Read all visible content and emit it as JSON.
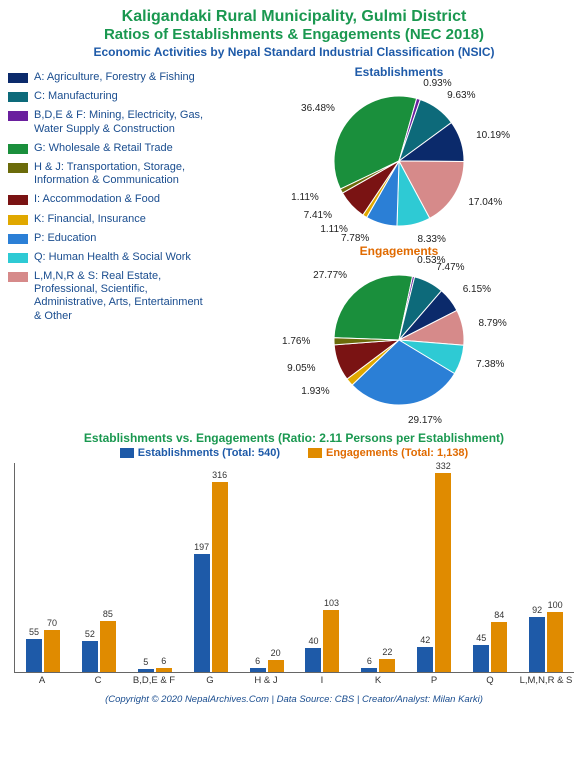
{
  "titles": {
    "line1": "Kaligandaki Rural Municipality, Gulmi District",
    "line2": "Ratios of Establishments & Engagements (NEC 2018)",
    "subtitle": "Economic Activities by Nepal Standard Industrial Classification (NSIC)"
  },
  "colors": {
    "title_green": "#1a9850",
    "subtitle_blue": "#1e5aa8",
    "bar_est": "#1e5aa8",
    "bar_eng": "#e08b00",
    "axis": "#666666",
    "bg": "#ffffff"
  },
  "categories": [
    {
      "code": "A",
      "label": "A: Agriculture, Forestry & Fishing",
      "color": "#0b2a6b"
    },
    {
      "code": "C",
      "label": "C: Manufacturing",
      "color": "#0d6a7a"
    },
    {
      "code": "B,D,E & F",
      "label": "B,D,E & F: Mining, Electricity, Gas, Water Supply & Construction",
      "color": "#6a1f9e"
    },
    {
      "code": "G",
      "label": "G: Wholesale & Retail Trade",
      "color": "#1a8f3c"
    },
    {
      "code": "H & J",
      "label": "H & J: Transportation, Storage, Information & Communication",
      "color": "#6b6b0a"
    },
    {
      "code": "I",
      "label": "I: Accommodation & Food",
      "color": "#7a1313"
    },
    {
      "code": "K",
      "label": "K: Financial, Insurance",
      "color": "#e0a800"
    },
    {
      "code": "P",
      "label": "P: Education",
      "color": "#2b7fd6"
    },
    {
      "code": "Q",
      "label": "Q: Human Health & Social Work",
      "color": "#2ecad4"
    },
    {
      "code": "L,M,N,R & S",
      "label": "L,M,N,R & S: Real Estate, Professional, Scientific, Administrative, Arts, Entertainment & Other",
      "color": "#d68a8a"
    }
  ],
  "pie_establishments": {
    "title": "Establishments",
    "title_color": "#1e5aa8",
    "radius": 65,
    "slices": [
      {
        "code": "G",
        "value": 36.48,
        "label": "36.48%"
      },
      {
        "code": "B,D,E & F",
        "value": 0.93,
        "label": "0.93%"
      },
      {
        "code": "C",
        "value": 9.63,
        "label": "9.63%"
      },
      {
        "code": "A",
        "value": 10.19,
        "label": "10.19%"
      },
      {
        "code": "L,M,N,R & S",
        "value": 17.04,
        "label": "17.04%"
      },
      {
        "code": "Q",
        "value": 8.33,
        "label": "8.33%"
      },
      {
        "code": "P",
        "value": 7.78,
        "label": "7.78%"
      },
      {
        "code": "K",
        "value": 1.11,
        "label": "1.11%"
      },
      {
        "code": "I",
        "value": 7.41,
        "label": "7.41%"
      },
      {
        "code": "H & J",
        "value": 1.11,
        "label": "1.11%"
      }
    ]
  },
  "pie_engagements": {
    "title": "Engagements",
    "title_color": "#e06a00",
    "radius": 65,
    "slices": [
      {
        "code": "G",
        "value": 27.77,
        "label": "27.77%"
      },
      {
        "code": "B,D,E & F",
        "value": 0.53,
        "label": "0.53%"
      },
      {
        "code": "C",
        "value": 7.47,
        "label": "7.47%"
      },
      {
        "code": "A",
        "value": 6.15,
        "label": "6.15%"
      },
      {
        "code": "L,M,N,R & S",
        "value": 8.79,
        "label": "8.79%"
      },
      {
        "code": "Q",
        "value": 7.38,
        "label": "7.38%"
      },
      {
        "code": "P",
        "value": 29.17,
        "label": "29.17%"
      },
      {
        "code": "K",
        "value": 1.93,
        "label": "1.93%"
      },
      {
        "code": "I",
        "value": 9.05,
        "label": "9.05%"
      },
      {
        "code": "H & J",
        "value": 1.76,
        "label": "1.76%"
      }
    ]
  },
  "bar_chart": {
    "title": "Establishments vs. Engagements (Ratio: 2.11 Persons per Establishment)",
    "legend_est": "Establishments (Total: 540)",
    "legend_eng": "Engagements (Total: 1,138)",
    "ymax": 350,
    "bar_est_color": "#1e5aa8",
    "bar_eng_color": "#e08b00",
    "groups": [
      {
        "code": "A",
        "est": 55,
        "eng": 70
      },
      {
        "code": "C",
        "est": 52,
        "eng": 85
      },
      {
        "code": "B,D,E & F",
        "est": 5,
        "eng": 6
      },
      {
        "code": "G",
        "est": 197,
        "eng": 316
      },
      {
        "code": "H & J",
        "est": 6,
        "eng": 20
      },
      {
        "code": "I",
        "est": 40,
        "eng": 103
      },
      {
        "code": "K",
        "est": 6,
        "eng": 22
      },
      {
        "code": "P",
        "est": 42,
        "eng": 332
      },
      {
        "code": "Q",
        "est": 45,
        "eng": 84
      },
      {
        "code": "L,M,N,R & S",
        "est": 92,
        "eng": 100
      }
    ]
  },
  "footer": "(Copyright © 2020 NepalArchives.Com | Data Source: CBS | Creator/Analyst: Milan Karki)"
}
